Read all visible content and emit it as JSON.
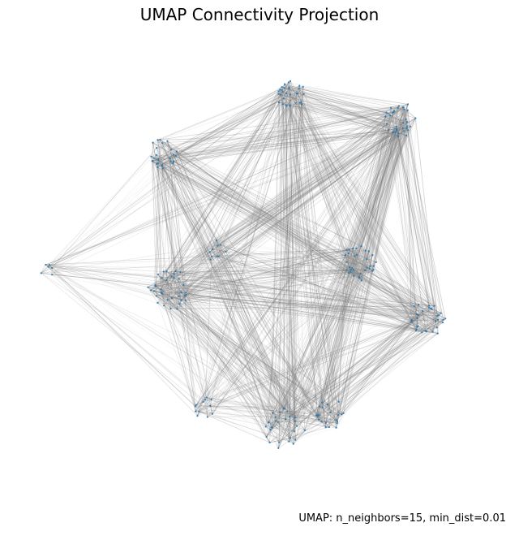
{
  "chart_data": {
    "type": "scatter",
    "title": "UMAP Connectivity Projection",
    "annotation": "UMAP: n_neighbors=15, min_dist=0.01",
    "axes_visible": false,
    "grid": false,
    "point_color": "#1f77b4",
    "edge_color": "#808080",
    "clusters": [
      {
        "name": "",
        "center": [
          4.3,
          8.45
        ],
        "spread": 0.35,
        "points": 32
      },
      {
        "name": "",
        "center": [
          6.9,
          7.85
        ],
        "spread": 0.4,
        "points": 38
      },
      {
        "name": "",
        "center": [
          1.2,
          7.05
        ],
        "spread": 0.35,
        "points": 28
      },
      {
        "name": "",
        "center": [
          5.95,
          4.45
        ],
        "spread": 0.4,
        "points": 34
      },
      {
        "name": "",
        "center": [
          1.35,
          3.75
        ],
        "spread": 0.45,
        "points": 36
      },
      {
        "name": "",
        "center": [
          7.55,
          3.05
        ],
        "spread": 0.4,
        "points": 32
      },
      {
        "name": "",
        "center": [
          2.5,
          4.7
        ],
        "spread": 0.2,
        "points": 10
      },
      {
        "name": "",
        "center": [
          2.2,
          0.9
        ],
        "spread": 0.25,
        "points": 12
      },
      {
        "name": "",
        "center": [
          4.1,
          0.4
        ],
        "spread": 0.45,
        "points": 30
      },
      {
        "name": "",
        "center": [
          5.2,
          0.75
        ],
        "spread": 0.35,
        "points": 22
      },
      {
        "name": "",
        "center": [
          -1.6,
          4.2
        ],
        "spread": 0.18,
        "points": 6
      }
    ],
    "edge_count": 2200,
    "xlim": [
      -2.2,
      9.0
    ],
    "ylim": [
      -1.3,
      9.6
    ]
  }
}
